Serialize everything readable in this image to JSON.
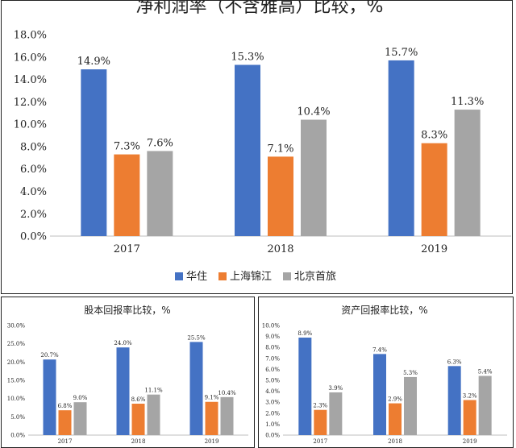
{
  "chart_data": [
    {
      "type": "bar",
      "title": "净利润率（不含雅高）比较，%",
      "categories": [
        "2017",
        "2018",
        "2019"
      ],
      "series": [
        {
          "name": "华住",
          "values": [
            14.9,
            15.3,
            15.7
          ],
          "labels": [
            "14.9%",
            "15.3%",
            "15.7%"
          ]
        },
        {
          "name": "上海锦江",
          "values": [
            7.3,
            7.1,
            8.3
          ],
          "labels": [
            "7.3%",
            "7.1%",
            "8.3%"
          ]
        },
        {
          "name": "北京首旅",
          "values": [
            7.6,
            10.4,
            11.3
          ],
          "labels": [
            "7.6%",
            "10.4%",
            "11.3%"
          ]
        }
      ],
      "ylim": [
        0,
        18
      ],
      "yticks": [
        "0.0%",
        "2.0%",
        "4.0%",
        "6.0%",
        "8.0%",
        "10.0%",
        "12.0%",
        "14.0%",
        "16.0%",
        "18.0%"
      ],
      "legend": "bottom",
      "grid": false
    },
    {
      "type": "bar",
      "title": "股本回报率比较，%",
      "categories": [
        "2017",
        "2018",
        "2019"
      ],
      "series": [
        {
          "name": "华住",
          "values": [
            20.7,
            24.0,
            25.5
          ],
          "labels": [
            "20.7%",
            "24.0%",
            "25.5%"
          ]
        },
        {
          "name": "上海锦江",
          "values": [
            6.8,
            8.6,
            9.1
          ],
          "labels": [
            "6.8%",
            "8.6%",
            "9.1%"
          ]
        },
        {
          "name": "北京首旅",
          "values": [
            9.0,
            11.1,
            10.4
          ],
          "labels": [
            "9.0%",
            "11.1%",
            "10.4%"
          ]
        }
      ],
      "ylim": [
        0,
        30
      ],
      "yticks": [
        "0.0%",
        "5.0%",
        "10.0%",
        "15.0%",
        "20.0%",
        "25.0%",
        "30.0%"
      ],
      "grid": false
    },
    {
      "type": "bar",
      "title": "资产回报率比较，%",
      "categories": [
        "2017",
        "2018",
        "2019"
      ],
      "series": [
        {
          "name": "华住",
          "values": [
            8.9,
            7.4,
            6.3
          ],
          "labels": [
            "8.9%",
            "7.4%",
            "6.3%"
          ]
        },
        {
          "name": "上海锦江",
          "values": [
            2.3,
            2.9,
            3.2
          ],
          "labels": [
            "2.3%",
            "2.9%",
            "3.2%"
          ]
        },
        {
          "name": "北京首旅",
          "values": [
            3.9,
            5.3,
            5.4
          ],
          "labels": [
            "3.9%",
            "5.3%",
            "5.4%"
          ]
        }
      ],
      "ylim": [
        0,
        10
      ],
      "yticks": [
        "0.0%",
        "1.0%",
        "2.0%",
        "3.0%",
        "4.0%",
        "5.0%",
        "6.0%",
        "7.0%",
        "8.0%",
        "9.0%",
        "10.0%"
      ],
      "grid": false
    }
  ],
  "colors": {
    "华住": "#4472c4",
    "上海锦江": "#ed7d31",
    "北京首旅": "#a5a5a5"
  }
}
